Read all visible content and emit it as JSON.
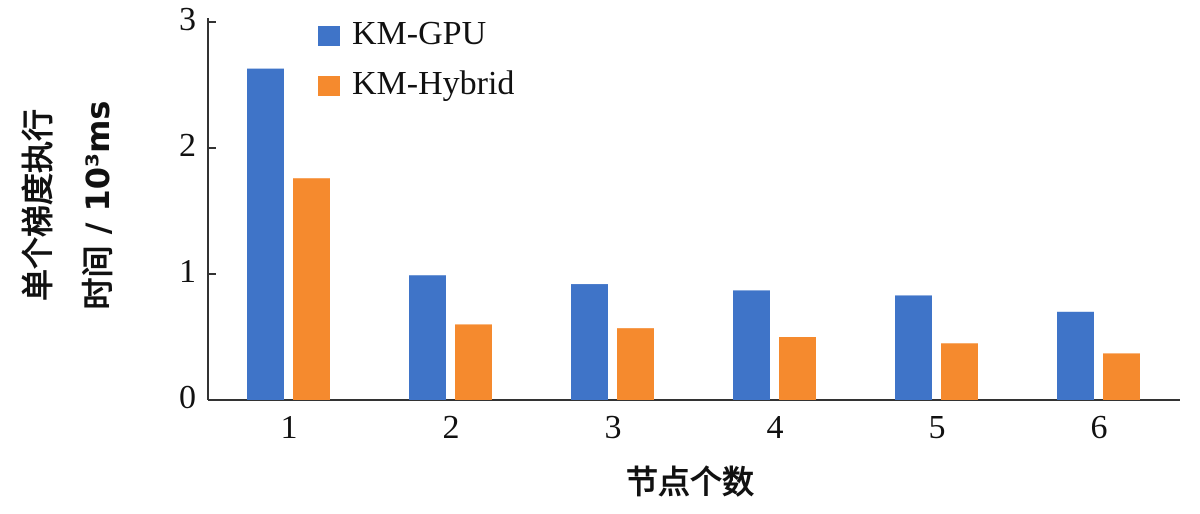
{
  "chart_data": {
    "type": "bar",
    "categories": [
      "1",
      "2",
      "3",
      "4",
      "5",
      "6"
    ],
    "series": [
      {
        "name": "KM-GPU",
        "color": "#3f74c8",
        "values": [
          2.63,
          0.99,
          0.92,
          0.87,
          0.83,
          0.7
        ]
      },
      {
        "name": "KM-Hybrid",
        "color": "#f58a2e",
        "values": [
          1.76,
          0.6,
          0.57,
          0.5,
          0.45,
          0.37
        ]
      }
    ],
    "ylim": [
      0,
      3
    ],
    "yticks": [
      0,
      1,
      2,
      3
    ],
    "xlabel": "节点个数",
    "ylabel": [
      "单个梯度执行",
      "时间 / 10³ms"
    ],
    "legend": "top-left"
  }
}
